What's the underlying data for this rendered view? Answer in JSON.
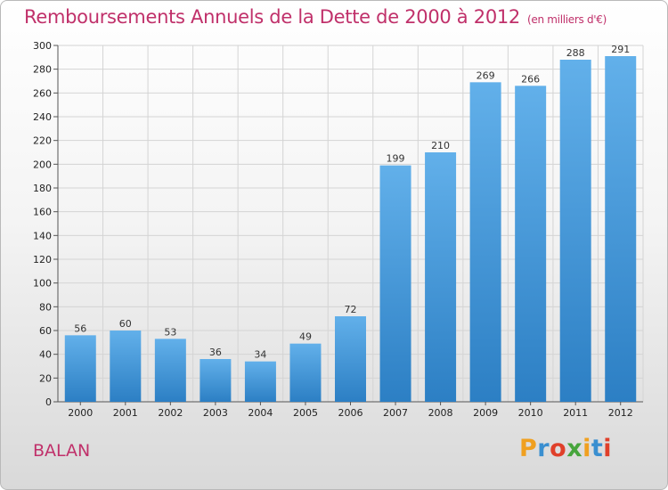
{
  "header": {
    "title": "Remboursements Annuels de la Dette de 2000 à 2012",
    "unit": "(en milliers d'€)"
  },
  "footer": {
    "commune": "BALAN",
    "logo": "Proxiti"
  },
  "colors": {
    "title": "#c0306a",
    "bar_light": "#62b0ea",
    "bar_dark": "#2c7fc4"
  },
  "chart_data": {
    "type": "bar",
    "title": "Remboursements Annuels de la Dette de 2000 à 2012",
    "subtitle": "(en milliers d'€)",
    "categories": [
      "2000",
      "2001",
      "2002",
      "2003",
      "2004",
      "2005",
      "2006",
      "2007",
      "2008",
      "2009",
      "2010",
      "2011",
      "2012"
    ],
    "values": [
      56,
      60,
      53,
      36,
      34,
      49,
      72,
      199,
      210,
      269,
      266,
      288,
      291
    ],
    "ylim": [
      0,
      300
    ],
    "yticks": [
      0,
      20,
      40,
      60,
      80,
      100,
      120,
      140,
      160,
      180,
      200,
      220,
      240,
      260,
      280,
      300
    ],
    "grid": true,
    "legend": "none"
  }
}
